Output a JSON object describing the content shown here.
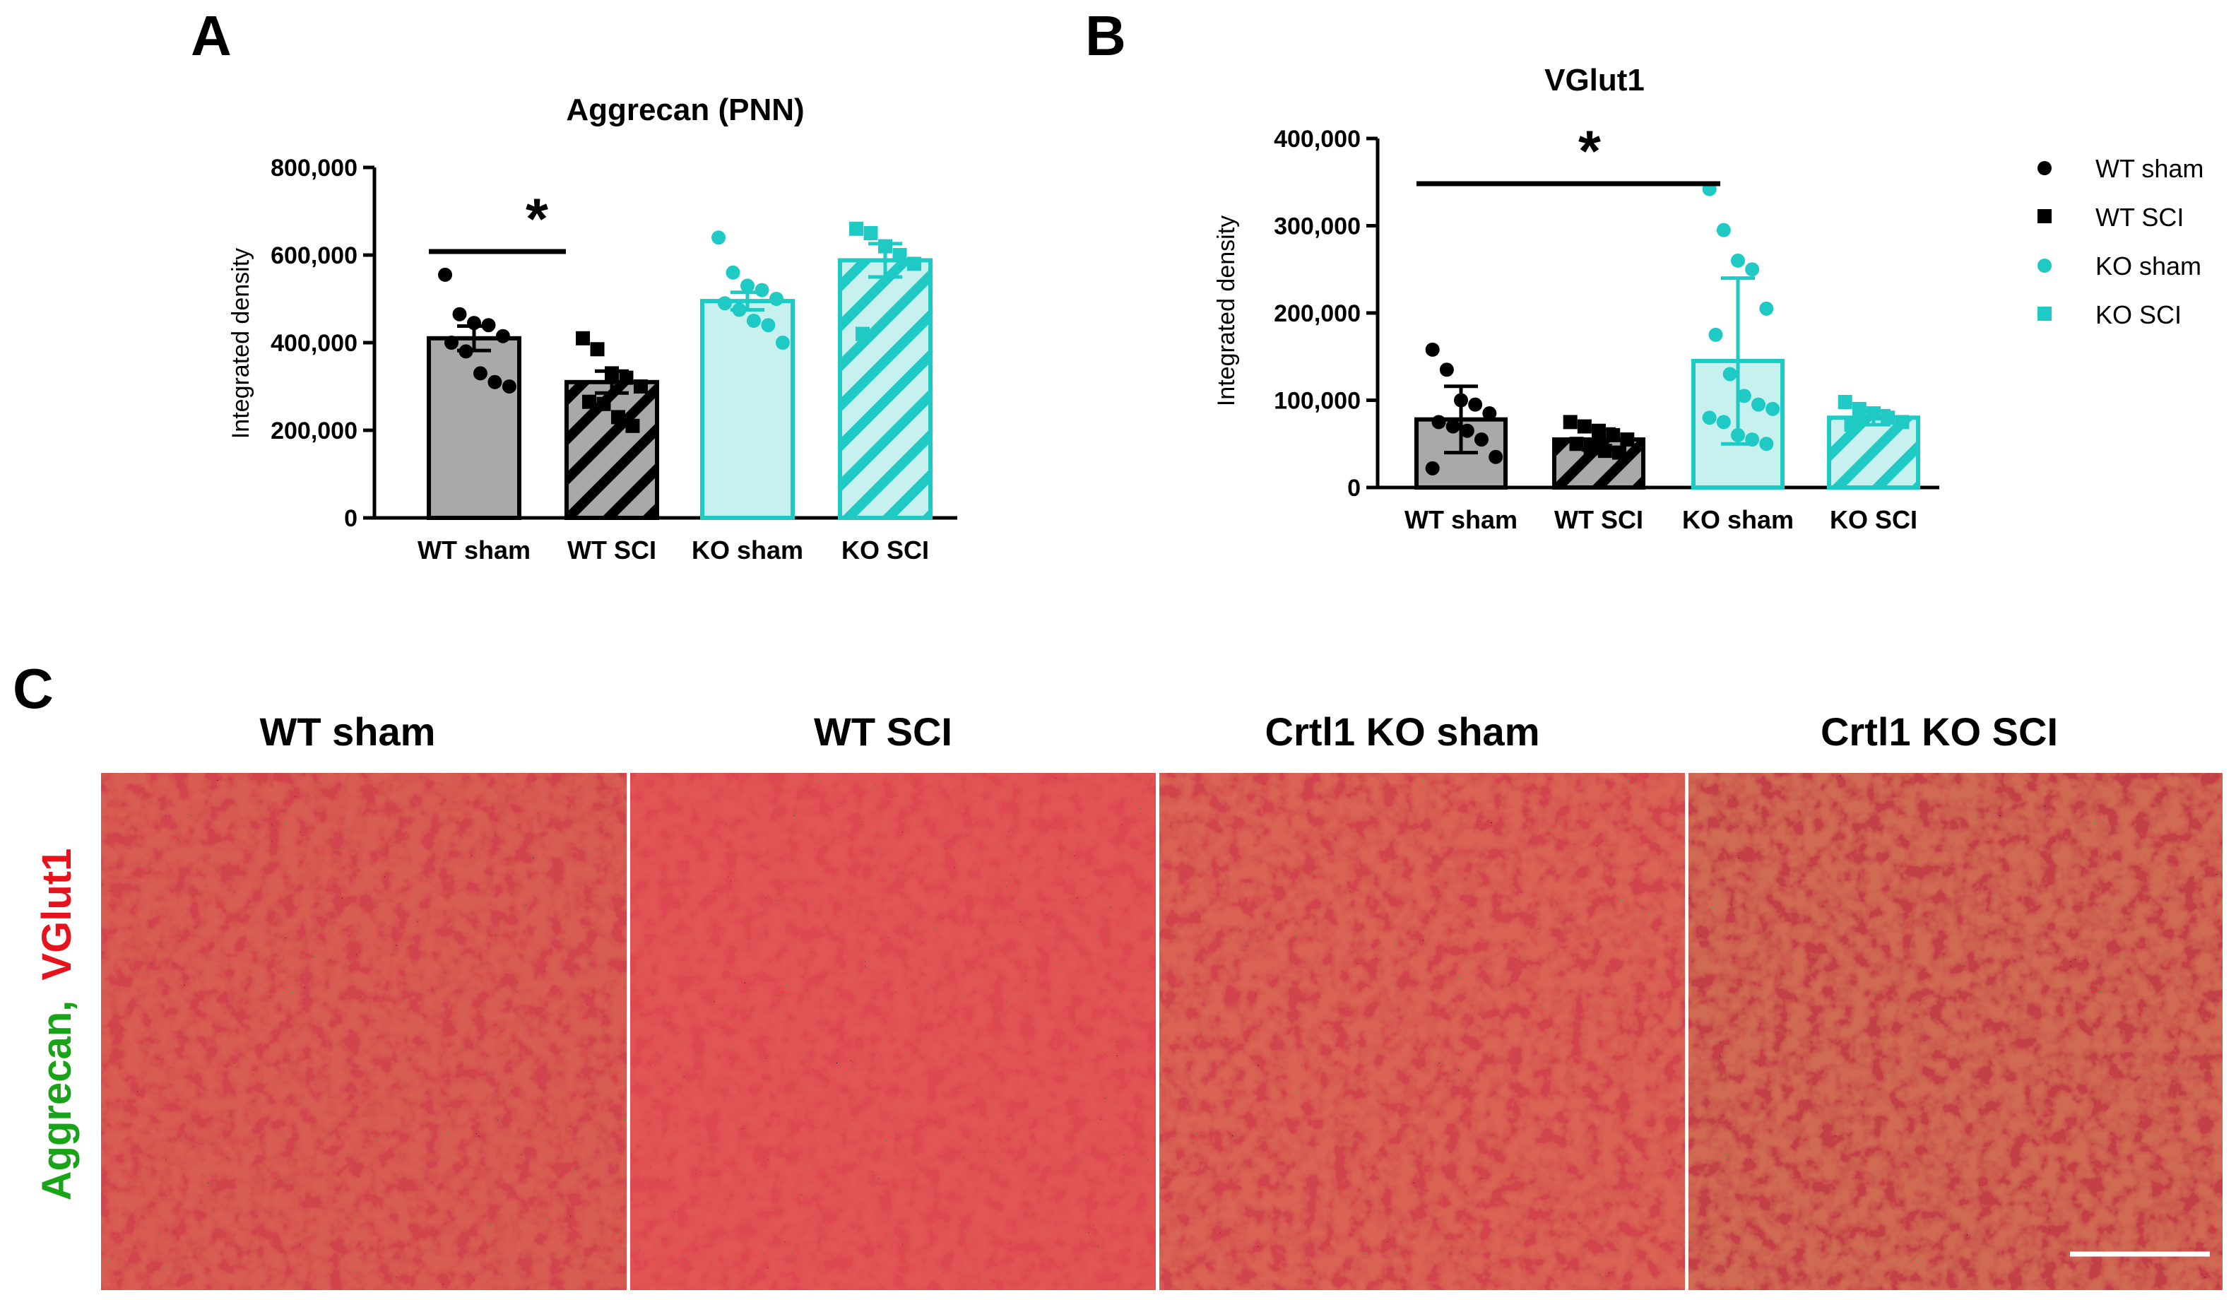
{
  "panels": {
    "a_letter": "A",
    "b_letter": "B",
    "c_letter": "C"
  },
  "colors": {
    "wt": "#a9a9a9",
    "wt_marker": "#000000",
    "ko": "#1fc9c4",
    "ko_fill": "#c6f1ef",
    "green": "#19a319",
    "red": "#e6121c"
  },
  "chart_data": [
    {
      "type": "bar",
      "title": "Aggrecan (PNN)",
      "ylabel": "Integrated density",
      "xlabel": "",
      "ylim": [
        0,
        800000
      ],
      "yticks": [
        "0",
        "200,000",
        "400,000",
        "600,000",
        "800,000"
      ],
      "categories": [
        "WT sham",
        "WT SCI",
        "KO sham",
        "KO SCI"
      ],
      "series": [
        {
          "values": [
            410000,
            310000,
            495000,
            588000
          ],
          "errors": [
            28000,
            25000,
            20000,
            38000
          ],
          "points": [
            [
              555000,
              465000,
              445000,
              440000,
              415000,
              400000,
              380000,
              330000,
              310000,
              300000
            ],
            [
              410000,
              385000,
              330000,
              320000,
              300000,
              265000,
              260000,
              230000,
              210000
            ],
            [
              640000,
              560000,
              530000,
              520000,
              500000,
              490000,
              475000,
              450000,
              440000,
              400000
            ],
            [
              660000,
              650000,
              620000,
              600000,
              580000,
              420000
            ]
          ]
        }
      ],
      "significance": {
        "from": "WT sham",
        "to": "WT SCI",
        "label": "*"
      }
    },
    {
      "type": "bar",
      "title": "VGlut1",
      "ylabel": "Integrated density",
      "xlabel": "",
      "ylim": [
        0,
        400000
      ],
      "yticks": [
        "0",
        "100,000",
        "200,000",
        "300,000",
        "400,000"
      ],
      "categories": [
        "WT sham",
        "WT SCI",
        "KO sham",
        "KO SCI"
      ],
      "series": [
        {
          "values": [
            78000,
            55000,
            145000,
            80000
          ],
          "errors": [
            38000,
            12000,
            95000,
            8000
          ],
          "points": [
            [
              158000,
              135000,
              100000,
              95000,
              85000,
              75000,
              70000,
              65000,
              55000,
              35000,
              22000
            ],
            [
              75000,
              70000,
              65000,
              60000,
              55000,
              50000,
              45000,
              42000,
              40000
            ],
            [
              342000,
              295000,
              260000,
              250000,
              205000,
              175000,
              130000,
              105000,
              95000,
              90000,
              80000,
              75000,
              60000,
              55000,
              50000
            ],
            [
              98000,
              90000,
              85000,
              80000,
              75000,
              72000
            ]
          ]
        }
      ],
      "significance": {
        "from": "WT sham",
        "to": "KO sham",
        "label": "*"
      },
      "legend": {
        "placement": "right",
        "entries": [
          "WT sham",
          "WT SCI",
          "KO sham",
          "KO SCI"
        ]
      }
    }
  ],
  "micrographs": {
    "titles": [
      "WT sham",
      "WT SCI",
      "Crtl1 KO sham",
      "Crtl1 KO SCI"
    ],
    "stain_green": "Aggrecan,",
    "stain_red": "VGlut1"
  }
}
